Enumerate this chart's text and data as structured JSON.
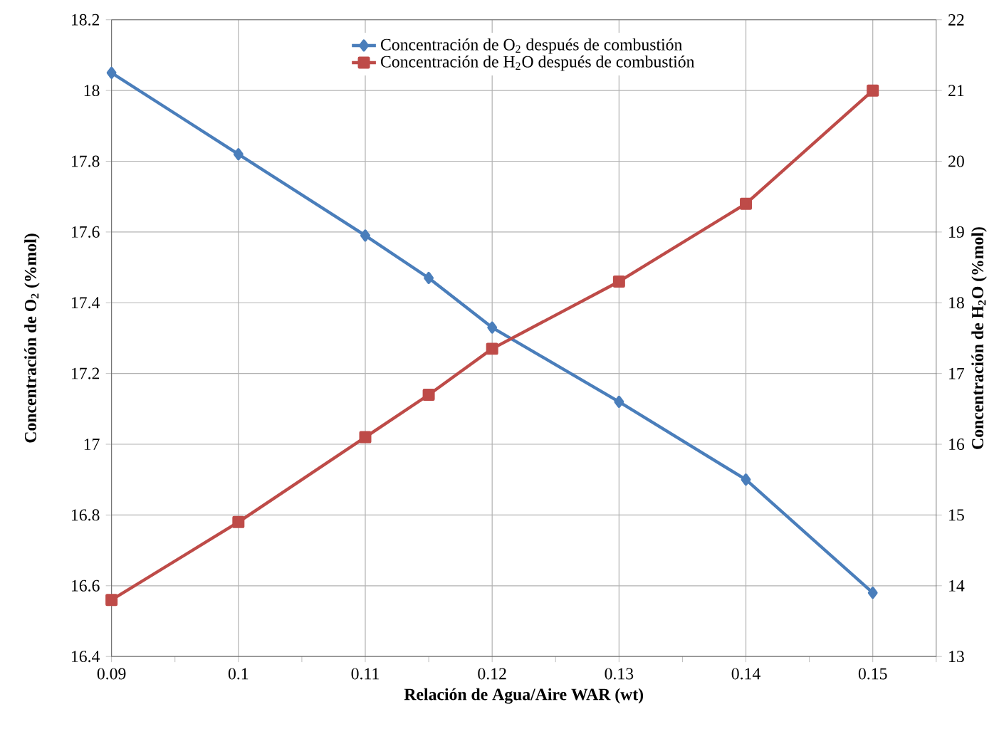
{
  "chart_data": {
    "type": "line",
    "xlabel": "Relación de Agua/Aire WAR (wt)",
    "ylabel": "Concentración de O$_{2}$  (%mol)",
    "y2label": "Concentración de H$_{2}$O  (%mol)",
    "x": [
      0.09,
      0.1,
      0.11,
      0.115,
      0.12,
      0.13,
      0.14,
      0.15
    ],
    "series": [
      {
        "name": "Concentración de O$_{2}$ después de combustión",
        "color": "#4a7ebb",
        "marker": "diamond",
        "values": [
          18.05,
          17.82,
          17.59,
          17.47,
          17.33,
          17.12,
          16.9,
          16.58
        ]
      },
      {
        "name": "Concentración de H$_{2}$O   después de combustión",
        "color": "#be4b48",
        "marker": "square",
        "axis": "y2",
        "values": [
          13.8,
          14.9,
          16.1,
          16.7,
          17.35,
          18.3,
          19.4,
          21.0
        ]
      }
    ],
    "xlim": [
      0.09,
      0.155
    ],
    "xticks": [
      0.09,
      {
        "value": 0.095,
        "label": null
      },
      0.1,
      {
        "value": 0.105,
        "label": null
      },
      0.11,
      {
        "value": 0.115,
        "label": null
      },
      0.12,
      {
        "value": 0.125,
        "label": null
      },
      0.13,
      {
        "value": 0.135,
        "label": null
      },
      0.14,
      {
        "value": 0.145,
        "label": null
      },
      0.15,
      {
        "value": 0.155,
        "label": null
      }
    ],
    "ylim": [
      16.4,
      18.2
    ],
    "yticks": [
      16.4,
      16.6,
      16.8,
      17,
      17.2,
      17.4,
      17.6,
      17.8,
      18,
      18.2
    ],
    "y2lim": [
      13,
      22
    ],
    "y2ticks": [
      13,
      14,
      15,
      16,
      17,
      18,
      19,
      20,
      21,
      22
    ],
    "grid": true,
    "legend": "top"
  }
}
